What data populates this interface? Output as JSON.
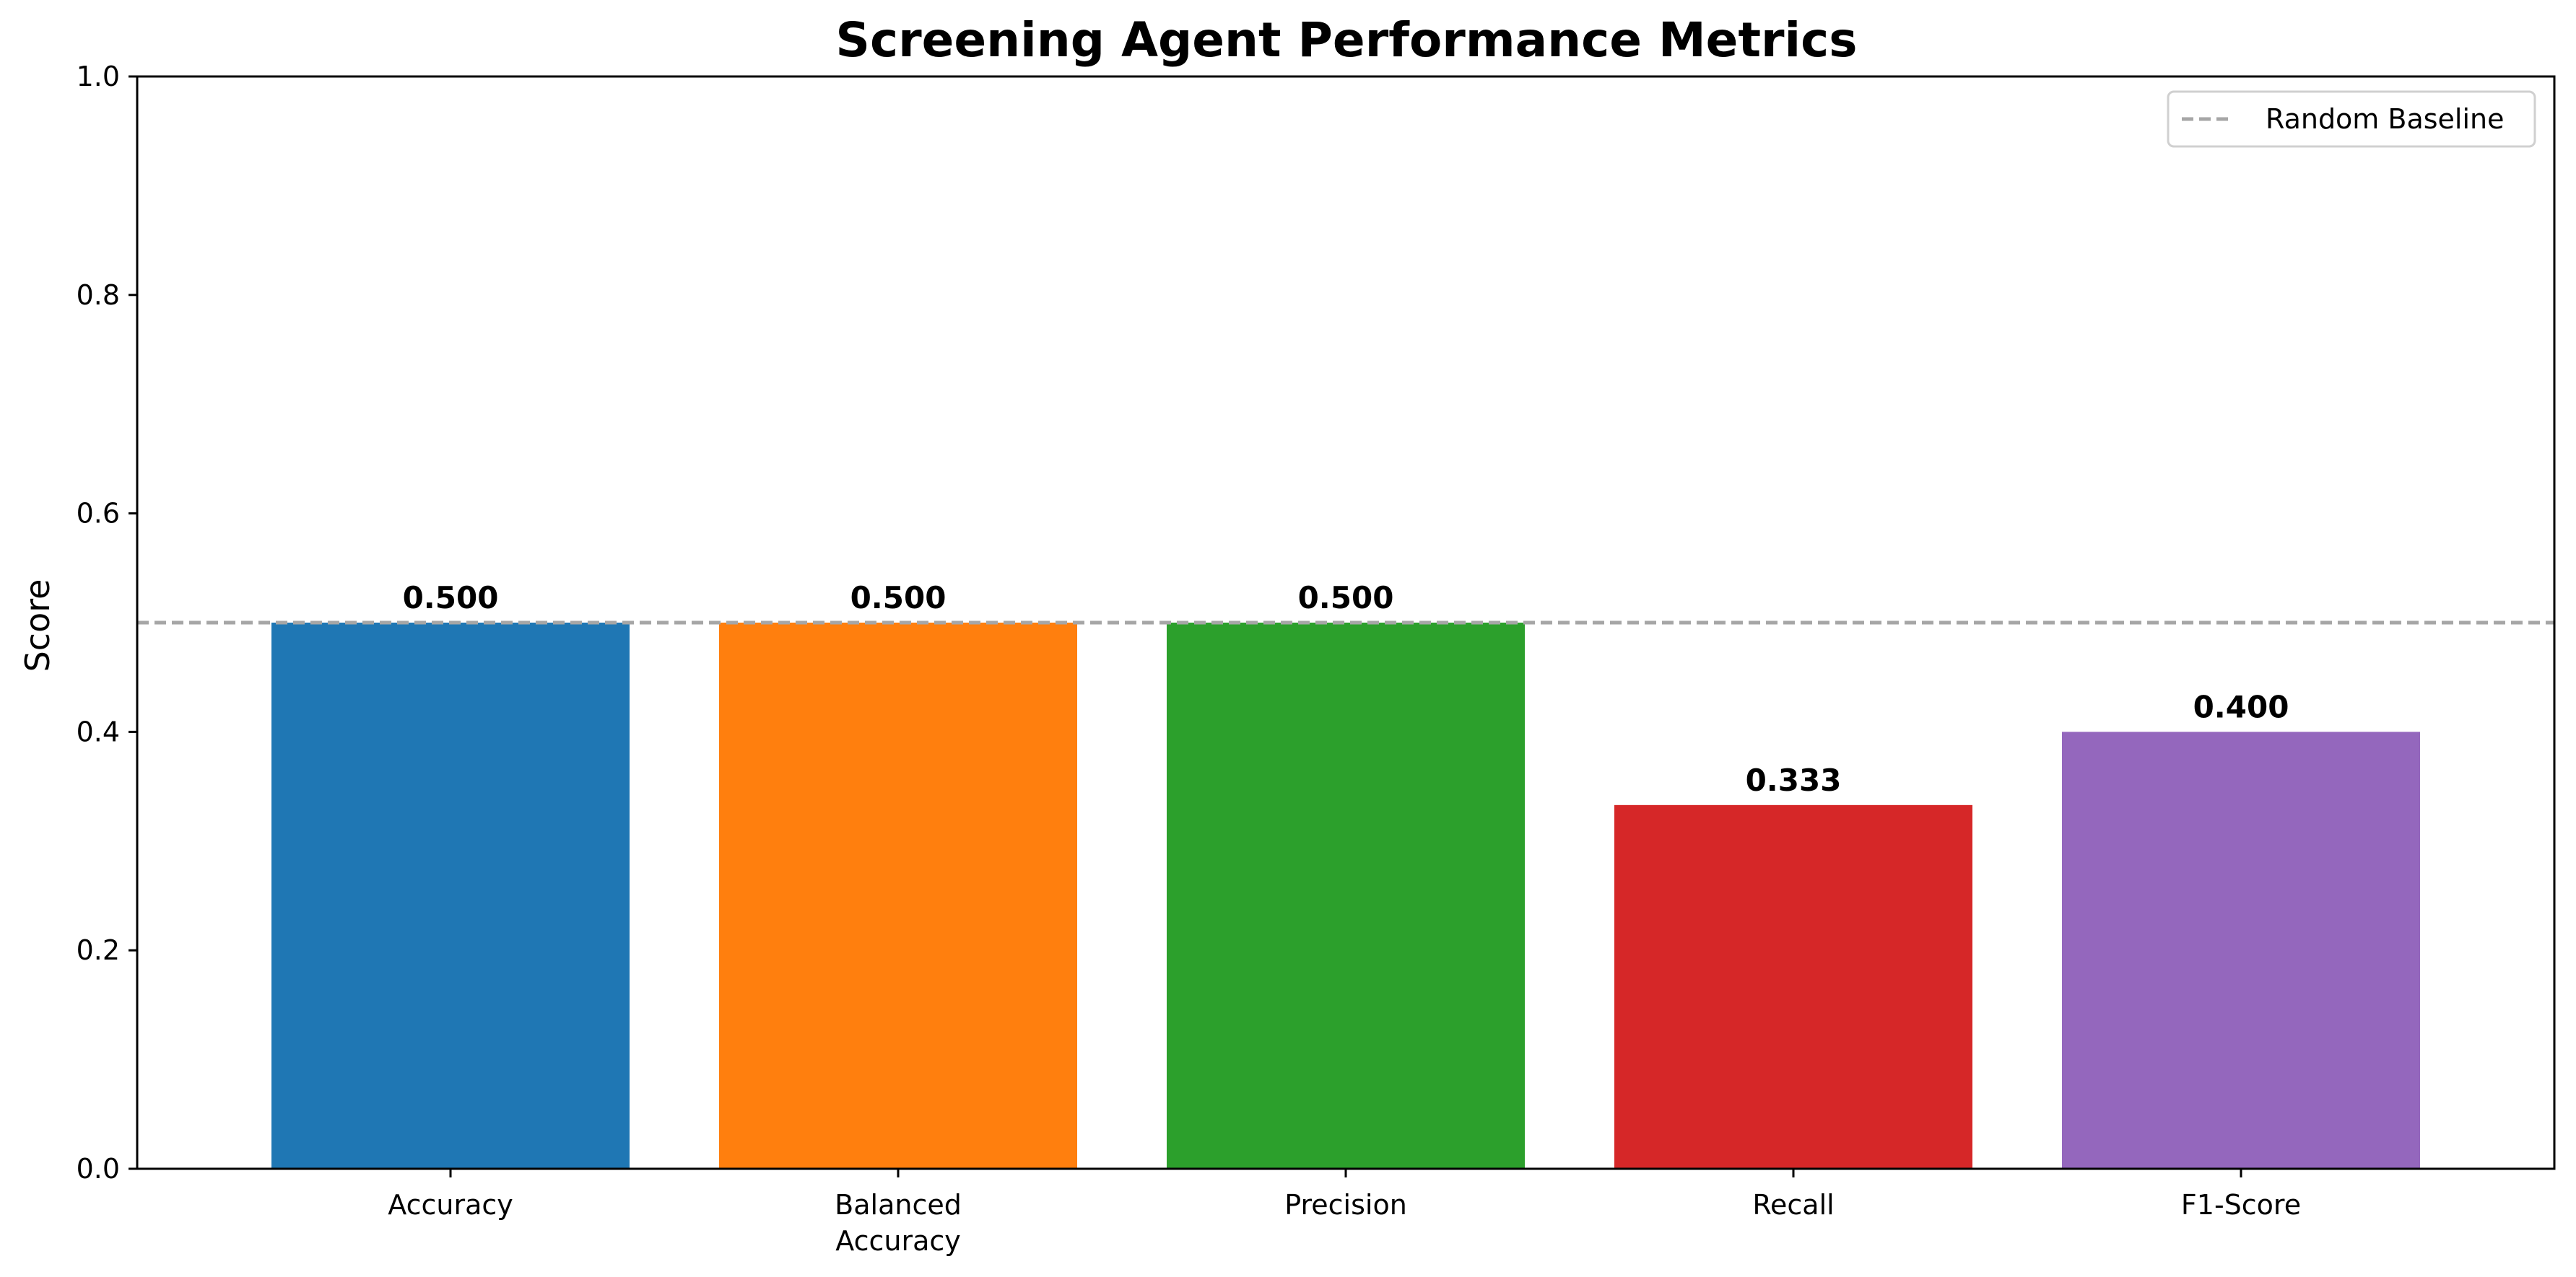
{
  "chart_data": {
    "type": "bar",
    "title": "Screening Agent Performance Metrics",
    "ylabel": "Score",
    "xlabel": "",
    "ylim": [
      0,
      1.0
    ],
    "yticks": [
      0.0,
      0.2,
      0.4,
      0.6,
      0.8,
      1.0
    ],
    "ytick_labels": [
      "0.0",
      "0.2",
      "0.4",
      "0.6",
      "0.8",
      "1.0"
    ],
    "categories": [
      [
        "Accuracy"
      ],
      [
        "Balanced",
        "Accuracy"
      ],
      [
        "Precision"
      ],
      [
        "Recall"
      ],
      [
        "F1-Score"
      ]
    ],
    "values": [
      0.5,
      0.5,
      0.5,
      0.333,
      0.4
    ],
    "value_labels": [
      "0.500",
      "0.500",
      "0.500",
      "0.333",
      "0.400"
    ],
    "colors": [
      "#1f77b4",
      "#ff7f0e",
      "#2ca02c",
      "#d62728",
      "#9467bd"
    ],
    "baseline": {
      "value": 0.5,
      "label": "Random Baseline",
      "color": "#a6a6a6",
      "style": "dashed"
    },
    "legend_position": "top-right",
    "grid": false
  }
}
